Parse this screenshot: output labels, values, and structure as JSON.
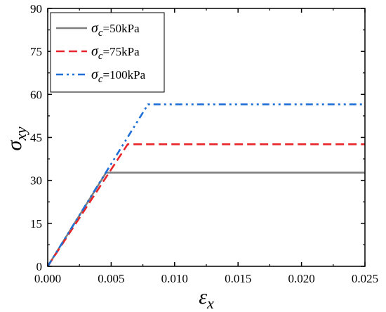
{
  "chart_data": {
    "type": "line",
    "x_axis": {
      "label_symbol": "ε",
      "label_subscript": "x",
      "lim": [
        0,
        0.025
      ],
      "ticks": [
        "0.000",
        "0.005",
        "0.010",
        "0.015",
        "0.020",
        "0.025"
      ]
    },
    "y_axis": {
      "label_symbol": "σ",
      "label_subscript": "xy",
      "lim": [
        0,
        90
      ],
      "ticks": [
        "0",
        "15",
        "30",
        "45",
        "60",
        "75",
        "90"
      ]
    },
    "grid": false,
    "legend_placement": "top-left",
    "series": [
      {
        "symbol": "σ",
        "subscript": "c",
        "value_label": "=50kPa",
        "color": "#7f7f7f",
        "line_style": "solid",
        "x": [
          0,
          0.0046,
          0.025
        ],
        "y": [
          0,
          32.7,
          32.7
        ]
      },
      {
        "symbol": "σ",
        "subscript": "c",
        "value_label": "=75kPa",
        "color": "#e8252a",
        "line_style": "dashed",
        "x": [
          0,
          0.0063,
          0.025
        ],
        "y": [
          0,
          42.6,
          42.6
        ]
      },
      {
        "symbol": "σ",
        "subscript": "c",
        "value_label": "=100kPa",
        "color": "#1f6fd6",
        "line_style": "dash-dot-dot",
        "x": [
          0,
          0.0079,
          0.025
        ],
        "y": [
          0,
          56.5,
          56.5
        ]
      }
    ]
  }
}
